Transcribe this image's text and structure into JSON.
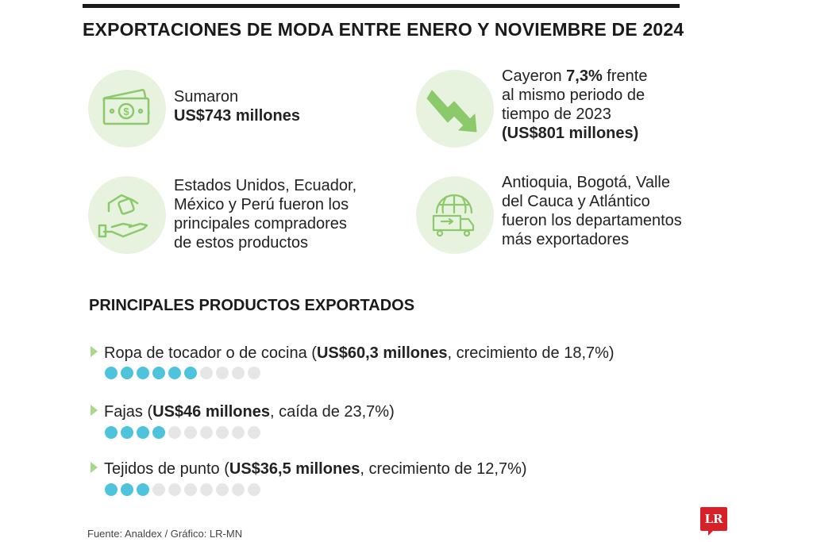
{
  "title": "EXPORTACIONES DE MODA ENTRE ENERO Y NOVIEMBRE DE 2024",
  "stats": {
    "total": {
      "line1": "Sumaron",
      "line2": "US$743 millones",
      "icon": "money-bill-icon"
    },
    "drop": {
      "pre": "Cayeron ",
      "bold": "7,3%",
      "post": " frente",
      "line2": "al mismo periodo de",
      "line3": "tiempo de 2023",
      "line4": "(US$801 millones)",
      "icon": "trend-down-arrow-icon"
    },
    "buyers": {
      "line1": "Estados Unidos, Ecuador,",
      "line2": "México y Perú fueron los",
      "line3": "principales compradores",
      "line4": "de estos productos",
      "icon": "hands-exchange-money-icon"
    },
    "regions": {
      "line1": "Antioquia, Bogotá, Valle",
      "line2": "del Cauca y Atlántico",
      "line3": "fueron los departamentos",
      "line4": "más exportadores",
      "icon": "globe-truck-icon"
    }
  },
  "section_title": "PRINCIPALES PRODUCTOS EXPORTADOS",
  "products": [
    {
      "pre": "Ropa de tocador o de cocina (",
      "bold": "US$60,3 millones",
      "post": ", crecimiento de 18,7%)",
      "filled_dots": 6,
      "total_dots": 10
    },
    {
      "pre": "Fajas (",
      "bold": "US$46 millones",
      "post": ", caída de 23,7%)",
      "filled_dots": 4,
      "total_dots": 10
    },
    {
      "pre": "Tejidos de punto (",
      "bold": "US$36,5 millones",
      "post": ", crecimiento de 12,7%)",
      "filled_dots": 3,
      "total_dots": 10
    }
  ],
  "footer": "Fuente: Analdex / Gráfico: LR-MN",
  "logo": "LR",
  "colors": {
    "accent_green": "#a8d88a",
    "circle_bg": "#e8f3df",
    "dot_on": "#4ec4dc",
    "dot_off": "#e6e6e6"
  }
}
